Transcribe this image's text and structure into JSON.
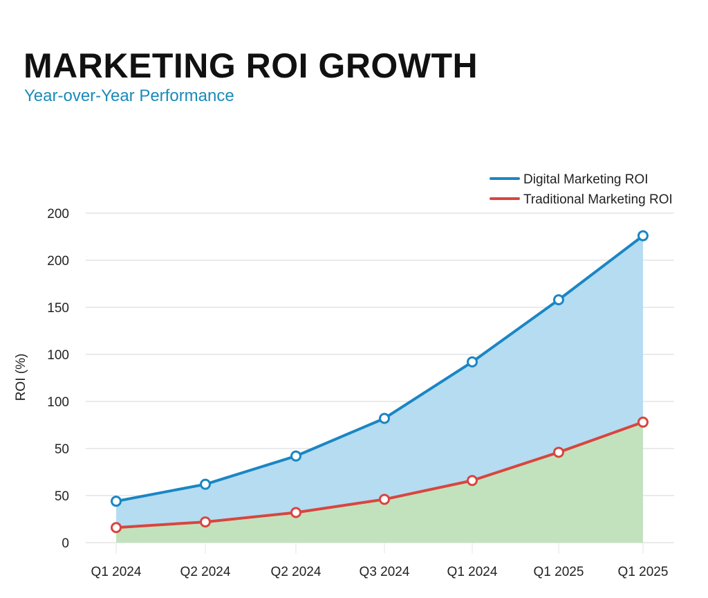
{
  "chart_data": {
    "type": "area",
    "title": "MARKETING ROI GROWTH",
    "subtitle": "Year-over-Year Performance",
    "xlabel": "",
    "ylabel": "ROI (%)",
    "categories": [
      "Q1 2024",
      "Q2 2024",
      "Q2 2024",
      "Q3 2024",
      "Q1 2024",
      "Q1 2025",
      "Q1 2025"
    ],
    "y_tick_labels": [
      "0",
      "50",
      "50",
      "100",
      "100",
      "150",
      "200",
      "200"
    ],
    "ylim": [
      0,
      175
    ],
    "grid": true,
    "legend_position": "top-right",
    "series": [
      {
        "name": "Digital Marketing ROI",
        "color": "#1a86c4",
        "fill": "#b5dcf1",
        "values": [
          22,
          31,
          46,
          66,
          96,
          129,
          163
        ]
      },
      {
        "name": "Traditional Marketing ROI",
        "color": "#d9453f",
        "fill": "#c2e2bd",
        "values": [
          8,
          11,
          16,
          23,
          33,
          48,
          64
        ]
      }
    ]
  }
}
